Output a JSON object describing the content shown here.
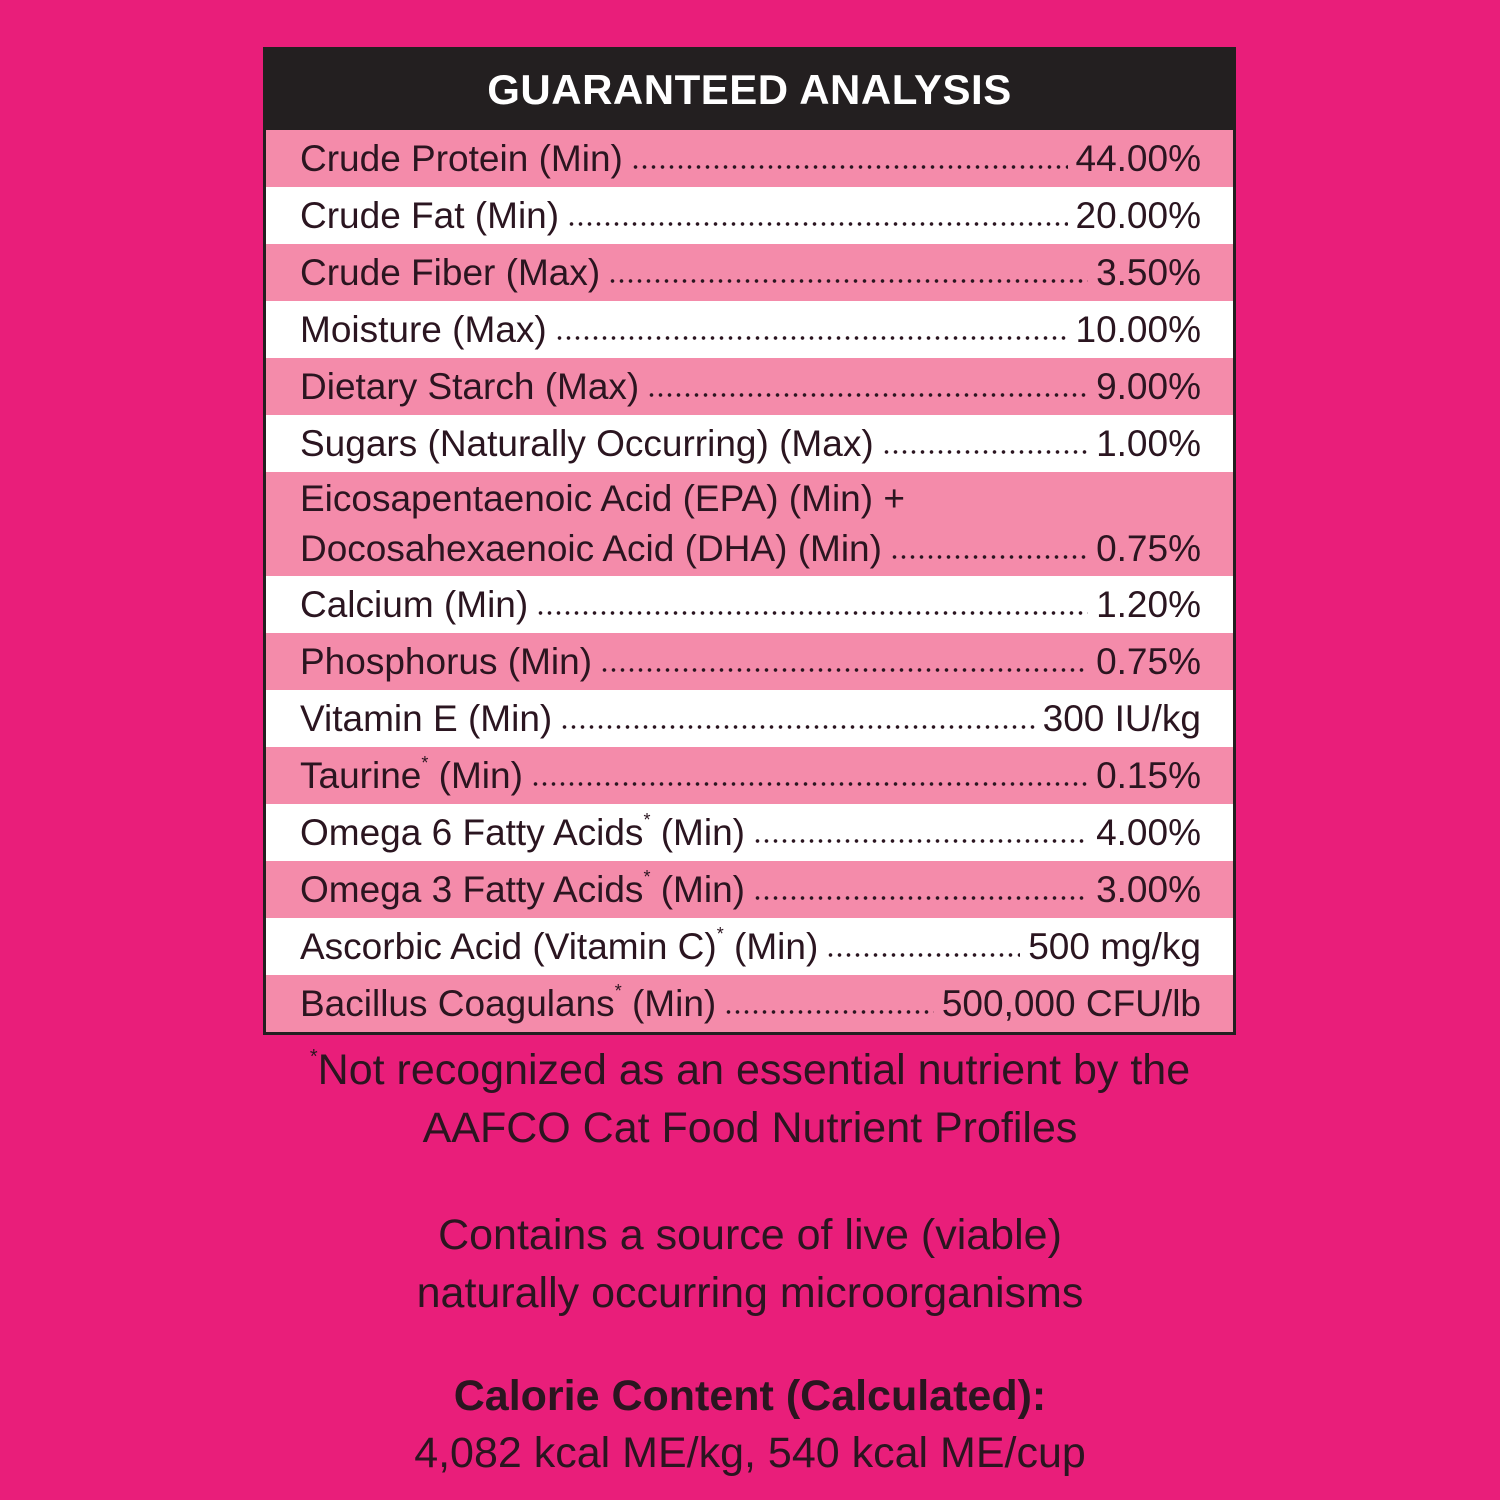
{
  "header": {
    "title": "GUARANTEED ANALYSIS"
  },
  "rows": [
    {
      "label": "Crude Protein",
      "mark": "",
      "qualifier": "(Min)",
      "value": "44.00%"
    },
    {
      "label": "Crude Fat",
      "mark": "",
      "qualifier": "(Min)",
      "value": "20.00%"
    },
    {
      "label": "Crude Fiber",
      "mark": "",
      "qualifier": "(Max)",
      "value": "3.50%"
    },
    {
      "label": "Moisture",
      "mark": "",
      "qualifier": "(Max)",
      "value": "10.00%"
    },
    {
      "label": "Dietary Starch",
      "mark": "",
      "qualifier": "(Max)",
      "value": "9.00%"
    },
    {
      "label": "Sugars (Naturally Occurring)",
      "mark": "",
      "qualifier": "(Max)",
      "value": "1.00%"
    },
    {
      "line1": "Eicosapentaenoic Acid (EPA) (Min) +",
      "label": "Docosahexaenoic Acid (DHA)",
      "mark": "",
      "qualifier": "(Min)",
      "value": "0.75%"
    },
    {
      "label": "Calcium",
      "mark": "",
      "qualifier": "(Min)",
      "value": "1.20%"
    },
    {
      "label": "Phosphorus",
      "mark": "",
      "qualifier": "(Min)",
      "value": "0.75%"
    },
    {
      "label": "Vitamin E",
      "mark": "",
      "qualifier": "(Min)",
      "value": "300 IU/kg"
    },
    {
      "label": "Taurine",
      "mark": "*",
      "qualifier": "(Min)",
      "value": "0.15%"
    },
    {
      "label": "Omega 6 Fatty Acids",
      "mark": "*",
      "qualifier": "(Min)",
      "value": "4.00%"
    },
    {
      "label": "Omega 3 Fatty Acids",
      "mark": "*",
      "qualifier": "(Min)",
      "value": "3.00%"
    },
    {
      "label": "Ascorbic Acid (Vitamin C)",
      "mark": "*",
      "qualifier": "(Min)",
      "value": "500 mg/kg"
    },
    {
      "label": "Bacillus Coagulans",
      "mark": "*",
      "qualifier": "(Min)",
      "value": "500,000 CFU/lb"
    }
  ],
  "footnote": {
    "mark": "*",
    "line1": "Not recognized as an essential nutrient by the",
    "line2": "AAFCO Cat Food Nutrient Profiles"
  },
  "live_note": {
    "line1": "Contains a source of live (viable)",
    "line2": "naturally occurring microorganisms"
  },
  "calorie": {
    "heading": "Calorie Content (Calculated):",
    "value": "4,082 kcal ME/kg, 540 kcal ME/cup"
  },
  "colors": {
    "background": "#E91E7A",
    "row_alt": "#F48BAA",
    "header": "#231F20"
  }
}
